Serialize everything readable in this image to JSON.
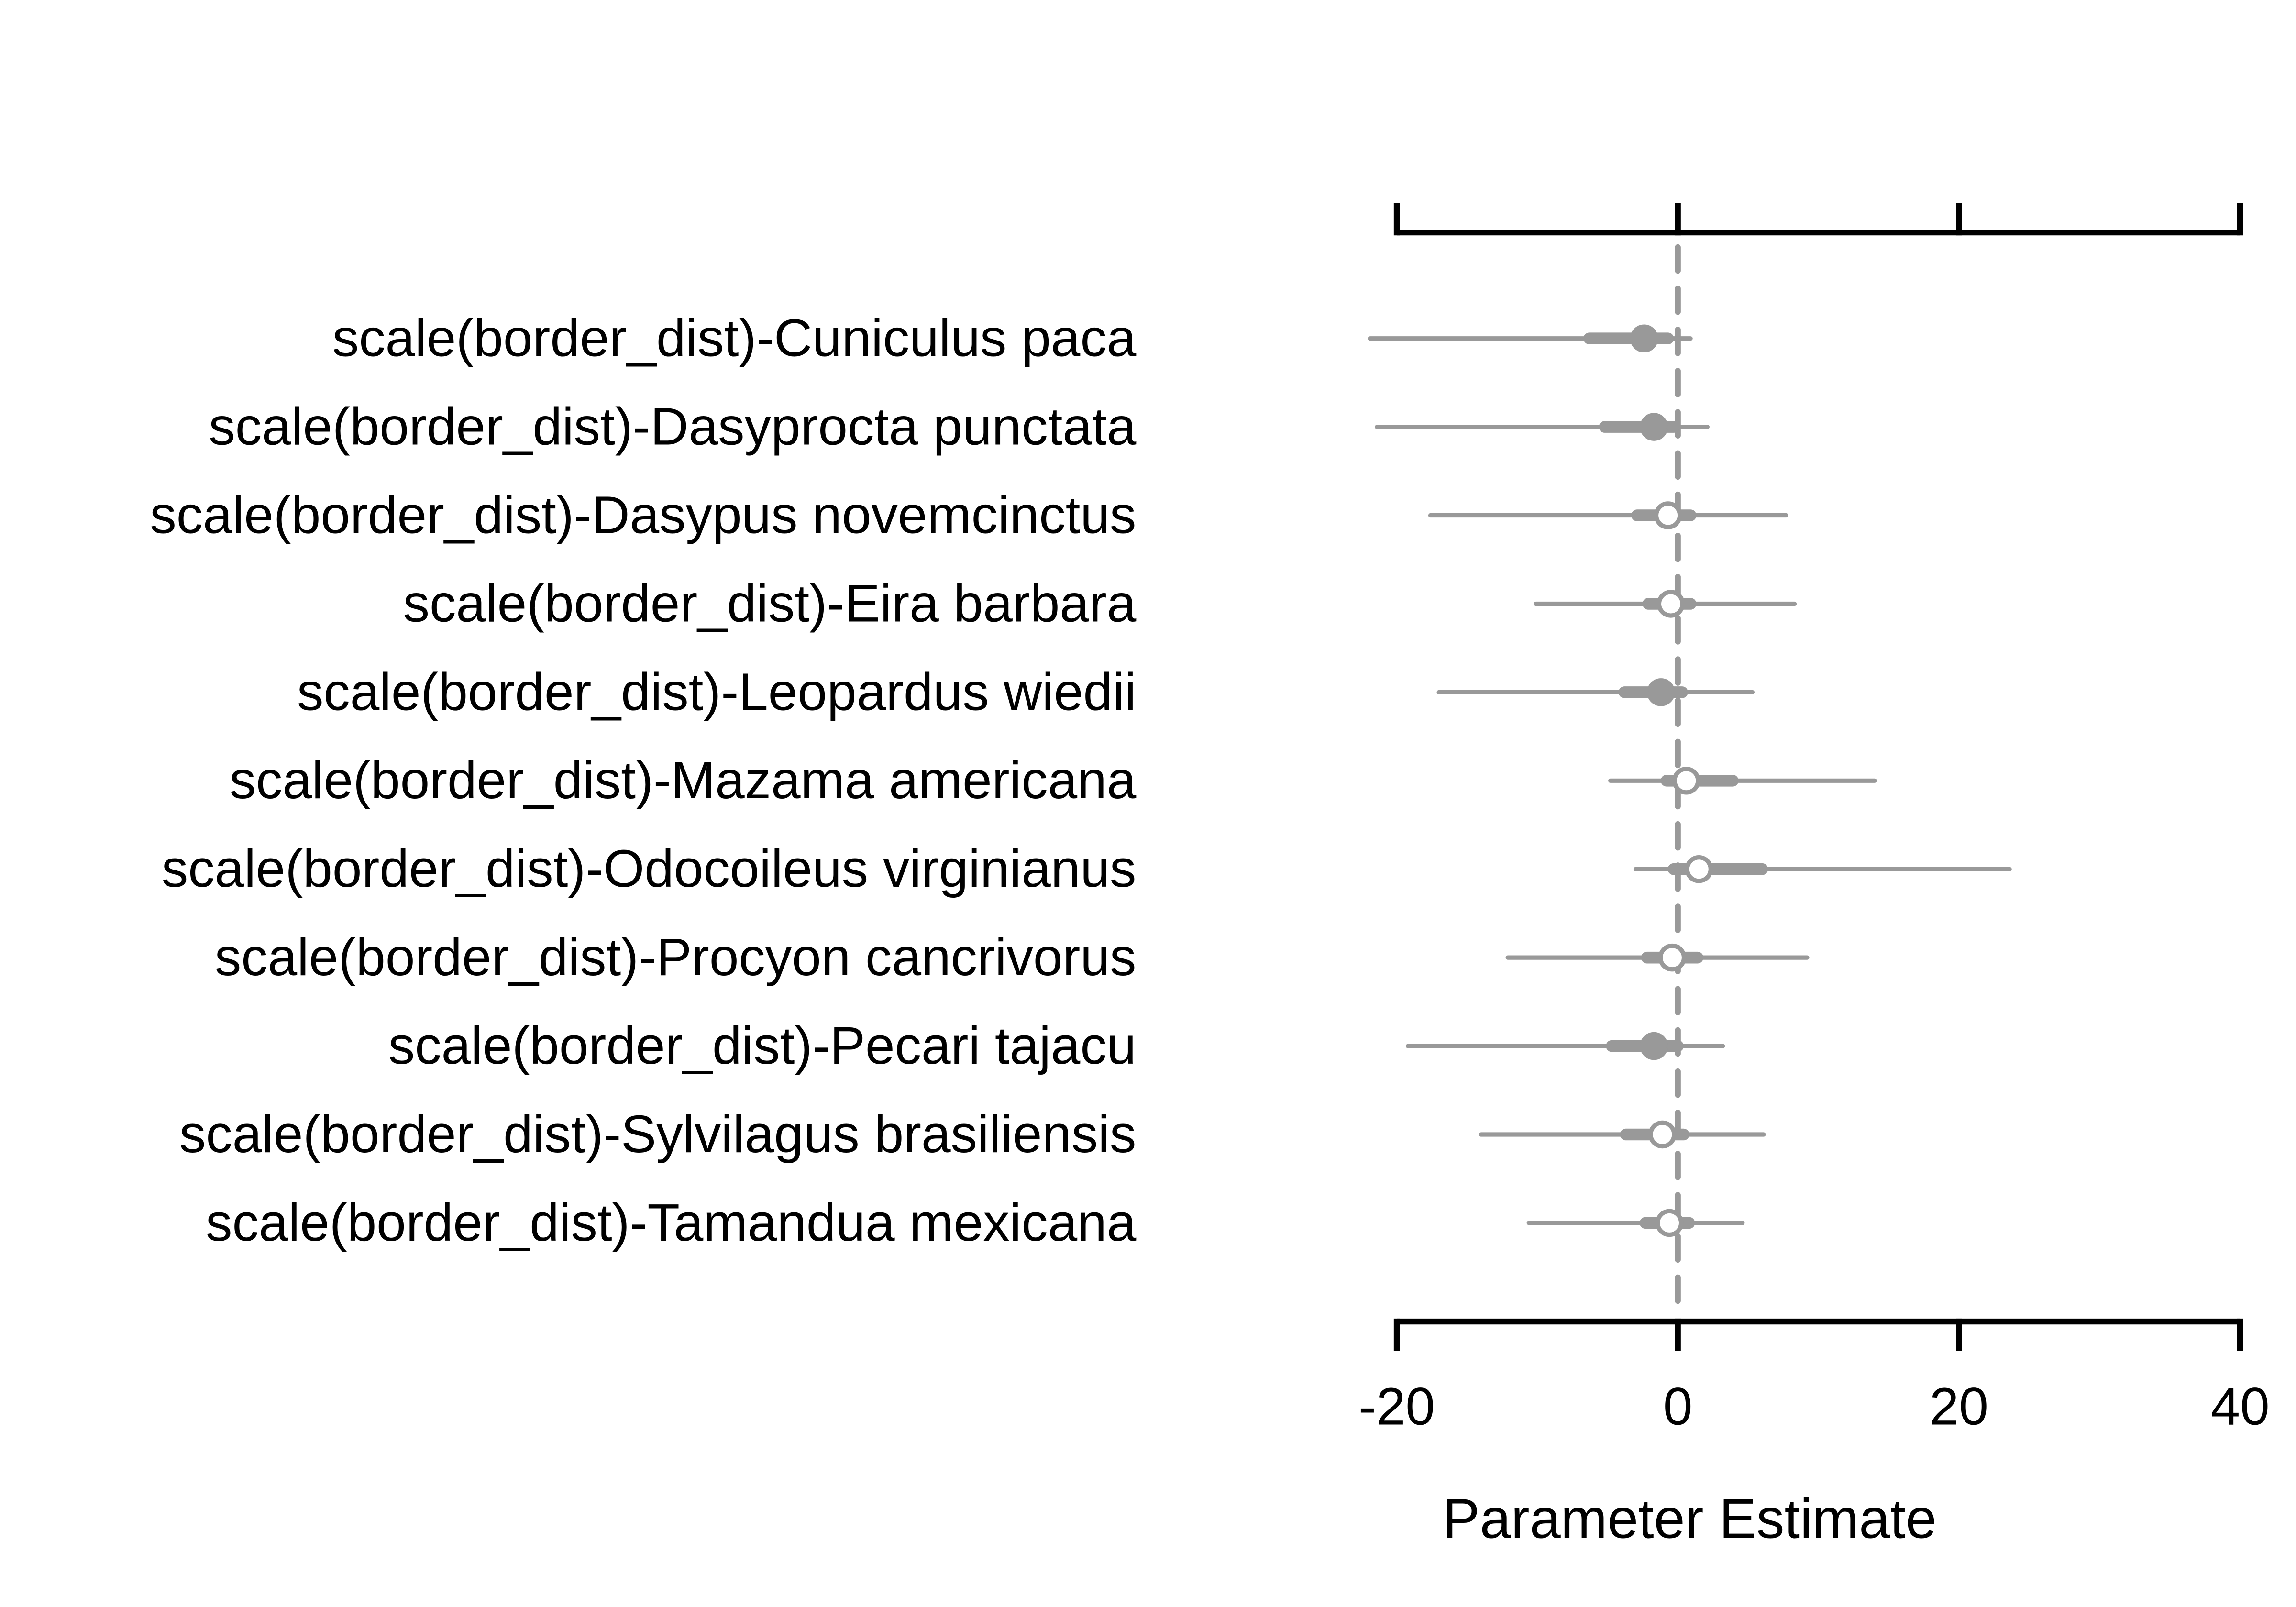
{
  "chart_data": {
    "type": "coefficient-plot",
    "title": "",
    "xlabel": "Parameter Estimate",
    "ylabel": "",
    "xlim": [
      -20,
      40
    ],
    "xticks": [
      -20,
      0,
      20,
      40
    ],
    "xtick_labels": [
      "-20",
      "0",
      "20",
      "40"
    ],
    "reference_line": 0,
    "grid": false,
    "colors": {
      "marks": "#999999",
      "axis": "#000000"
    },
    "rows": [
      {
        "label": "scale(border_dist)-Cuniculus paca",
        "estimate": -2.4,
        "inner": [
          -6.3,
          -0.7
        ],
        "outer": [
          -21.9,
          0.9
        ],
        "filled": true
      },
      {
        "label": "scale(border_dist)-Dasyprocta punctata",
        "estimate": -1.7,
        "inner": [
          -5.2,
          -0.3
        ],
        "outer": [
          -21.4,
          2.1
        ],
        "filled": true
      },
      {
        "label": "scale(border_dist)-Dasypus novemcinctus",
        "estimate": -0.7,
        "inner": [
          -2.9,
          0.9
        ],
        "outer": [
          -17.6,
          7.7
        ],
        "filled": false
      },
      {
        "label": "scale(border_dist)-Eira barbara",
        "estimate": -0.5,
        "inner": [
          -2.1,
          0.9
        ],
        "outer": [
          -10.1,
          8.3
        ],
        "filled": false
      },
      {
        "label": "scale(border_dist)-Leopardus wiedii",
        "estimate": -1.2,
        "inner": [
          -3.8,
          0.3
        ],
        "outer": [
          -17.0,
          5.3
        ],
        "filled": true
      },
      {
        "label": "scale(border_dist)-Mazama americana",
        "estimate": 0.6,
        "inner": [
          -0.8,
          3.9
        ],
        "outer": [
          -4.8,
          14.0
        ],
        "filled": false
      },
      {
        "label": "scale(border_dist)-Odocoileus virginianus",
        "estimate": 1.5,
        "inner": [
          -0.3,
          6.0
        ],
        "outer": [
          -3.0,
          23.6
        ],
        "filled": false
      },
      {
        "label": "scale(border_dist)-Procyon cancrivorus",
        "estimate": -0.4,
        "inner": [
          -2.2,
          1.4
        ],
        "outer": [
          -12.1,
          9.2
        ],
        "filled": false
      },
      {
        "label": "scale(border_dist)-Pecari tajacu",
        "estimate": -1.7,
        "inner": [
          -4.7,
          0.0
        ],
        "outer": [
          -19.2,
          3.2
        ],
        "filled": true
      },
      {
        "label": "scale(border_dist)-Sylvilagus brasiliensis",
        "estimate": -1.1,
        "inner": [
          -3.7,
          0.4
        ],
        "outer": [
          -14.0,
          6.1
        ],
        "filled": false
      },
      {
        "label": "scale(border_dist)-Tamandua mexicana",
        "estimate": -0.6,
        "inner": [
          -2.3,
          0.8
        ],
        "outer": [
          -10.6,
          4.6
        ],
        "filled": false
      }
    ]
  }
}
